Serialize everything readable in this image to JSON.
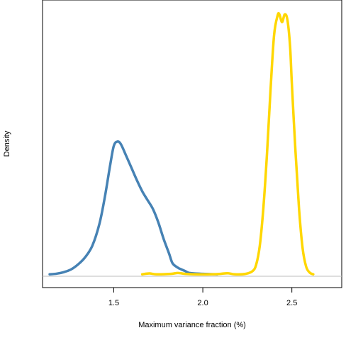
{
  "chart_data": {
    "type": "line",
    "xlabel": "Maximum variance fraction (%)",
    "ylabel": "Density",
    "xlim": [
      1.1,
      2.78
    ],
    "ylim": [
      -0.6,
      12.4
    ],
    "x_ticks": [
      {
        "value": 1.5,
        "label": "1.5"
      },
      {
        "value": 2.0,
        "label": "2.0"
      },
      {
        "value": 2.5,
        "label": "2.5"
      }
    ],
    "y_ticks_shown": false,
    "baseline": 0,
    "grid": false,
    "legend": "none",
    "series": [
      {
        "color": "#4682b4",
        "points": [
          [
            1.14,
            0.0
          ],
          [
            1.18,
            0.03
          ],
          [
            1.22,
            0.1
          ],
          [
            1.26,
            0.22
          ],
          [
            1.3,
            0.45
          ],
          [
            1.34,
            0.78
          ],
          [
            1.38,
            1.3
          ],
          [
            1.42,
            2.3
          ],
          [
            1.45,
            3.5
          ],
          [
            1.48,
            4.95
          ],
          [
            1.5,
            5.8
          ],
          [
            1.52,
            6.0
          ],
          [
            1.54,
            5.88
          ],
          [
            1.57,
            5.35
          ],
          [
            1.6,
            4.8
          ],
          [
            1.63,
            4.25
          ],
          [
            1.66,
            3.75
          ],
          [
            1.69,
            3.35
          ],
          [
            1.72,
            2.95
          ],
          [
            1.75,
            2.35
          ],
          [
            1.78,
            1.6
          ],
          [
            1.81,
            0.95
          ],
          [
            1.83,
            0.5
          ],
          [
            1.86,
            0.3
          ],
          [
            1.88,
            0.22
          ],
          [
            1.9,
            0.15
          ],
          [
            1.92,
            0.07
          ],
          [
            1.95,
            0.04
          ],
          [
            2.0,
            0.02
          ],
          [
            2.04,
            0.01
          ],
          [
            2.08,
            0.0
          ]
        ]
      },
      {
        "color": "#ffd700",
        "points": [
          [
            1.66,
            0.0
          ],
          [
            1.7,
            0.04
          ],
          [
            1.74,
            0.0
          ],
          [
            1.82,
            0.02
          ],
          [
            1.86,
            0.06
          ],
          [
            1.9,
            0.02
          ],
          [
            1.95,
            0.0
          ],
          [
            2.05,
            0.0
          ],
          [
            2.1,
            0.02
          ],
          [
            2.14,
            0.05
          ],
          [
            2.18,
            0.0
          ],
          [
            2.24,
            0.02
          ],
          [
            2.28,
            0.15
          ],
          [
            2.3,
            0.45
          ],
          [
            2.32,
            1.3
          ],
          [
            2.34,
            3.0
          ],
          [
            2.36,
            5.4
          ],
          [
            2.38,
            8.3
          ],
          [
            2.4,
            10.8
          ],
          [
            2.42,
            11.7
          ],
          [
            2.43,
            11.75
          ],
          [
            2.445,
            11.4
          ],
          [
            2.46,
            11.75
          ],
          [
            2.475,
            11.5
          ],
          [
            2.49,
            10.3
          ],
          [
            2.5,
            8.6
          ],
          [
            2.52,
            5.6
          ],
          [
            2.54,
            3.0
          ],
          [
            2.56,
            1.2
          ],
          [
            2.58,
            0.35
          ],
          [
            2.6,
            0.08
          ],
          [
            2.62,
            0.0
          ]
        ]
      }
    ]
  }
}
